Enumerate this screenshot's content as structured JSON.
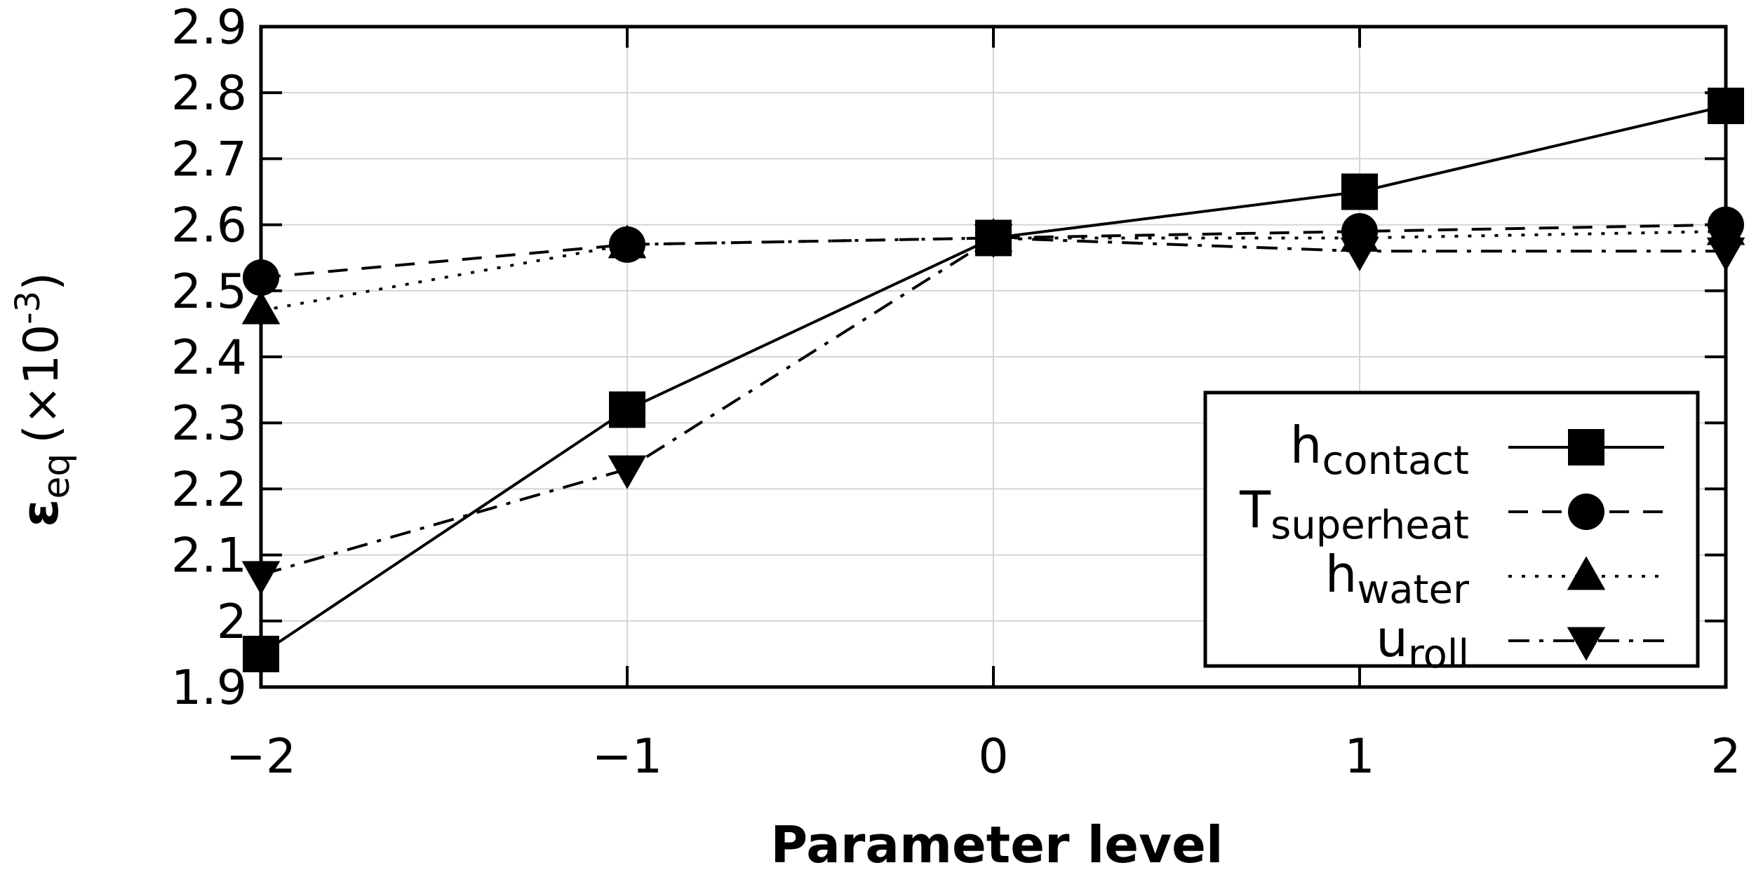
{
  "chart_data": {
    "type": "line",
    "title": "",
    "xlabel": "Parameter level",
    "ylabel": {
      "symbol": "ε",
      "subscript": "eq",
      "unit_prefix": "(×10",
      "exponent": "-3",
      "unit_suffix": ")"
    },
    "x": [
      -2,
      -1,
      0,
      1,
      2
    ],
    "xlim": [
      -2,
      2
    ],
    "ylim": [
      1.9,
      2.9
    ],
    "xticks": [
      -2,
      -1,
      0,
      1,
      2
    ],
    "xtick_labels": [
      "−2",
      "−1",
      "0",
      "1",
      "2"
    ],
    "yticks": [
      1.9,
      2.0,
      2.1,
      2.2,
      2.3,
      2.4,
      2.5,
      2.6,
      2.7,
      2.8,
      2.9
    ],
    "ytick_labels": [
      "1.9",
      "2",
      "2.1",
      "2.2",
      "2.3",
      "2.4",
      "2.5",
      "2.6",
      "2.7",
      "2.8",
      "2.9"
    ],
    "grid": true,
    "legend_position": "bottom-right",
    "series": [
      {
        "name": "h",
        "subscript": "contact",
        "line_style": "solid",
        "marker": "square",
        "values": [
          1.95,
          2.32,
          2.58,
          2.65,
          2.78
        ]
      },
      {
        "name": "T",
        "subscript": "superheat",
        "line_style": "dashed",
        "marker": "circle",
        "values": [
          2.52,
          2.57,
          2.58,
          2.59,
          2.6
        ]
      },
      {
        "name": "h",
        "subscript": "water",
        "line_style": "dotted",
        "marker": "triangle-up",
        "values": [
          2.47,
          2.57,
          2.58,
          2.58,
          2.59
        ]
      },
      {
        "name": "u",
        "subscript": "roll",
        "line_style": "dash-dot",
        "marker": "triangle-down",
        "values": [
          2.07,
          2.23,
          2.58,
          2.56,
          2.56
        ]
      }
    ]
  }
}
